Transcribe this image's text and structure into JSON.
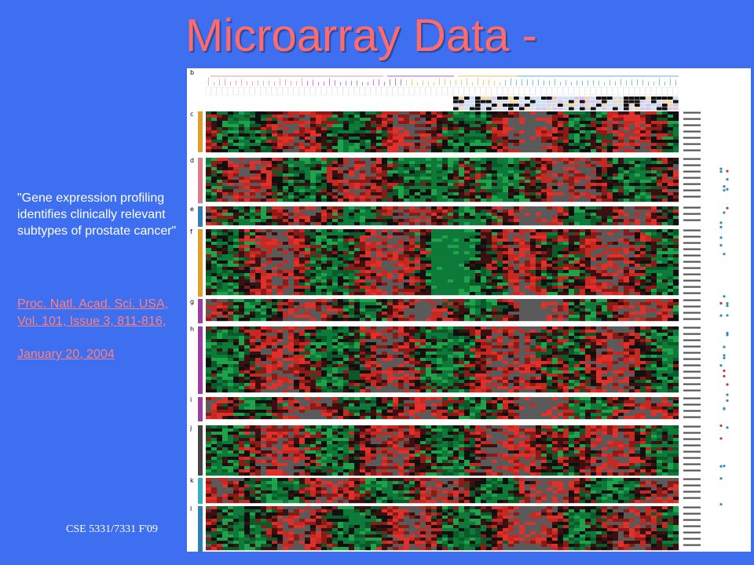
{
  "slide": {
    "title": "Microarray Data -",
    "caption": "\"Gene expression profiling identifies clinically relevant subtypes of prostate cancer\"",
    "citation_link": "Proc. Natl. Acad. Sci. USA, Vol. 101, Issue 3, 811-816,",
    "citation_date": "January 20, 2004",
    "footer": "CSE 5331/7331 F'09"
  },
  "figure": {
    "panel_letters": [
      "b",
      "c",
      "d",
      "e",
      "f",
      "g",
      "h",
      "i",
      "j",
      "k",
      "l"
    ],
    "colors": {
      "red": "#e0302a",
      "green": "#1fa34a",
      "black": "#101010"
    }
  }
}
